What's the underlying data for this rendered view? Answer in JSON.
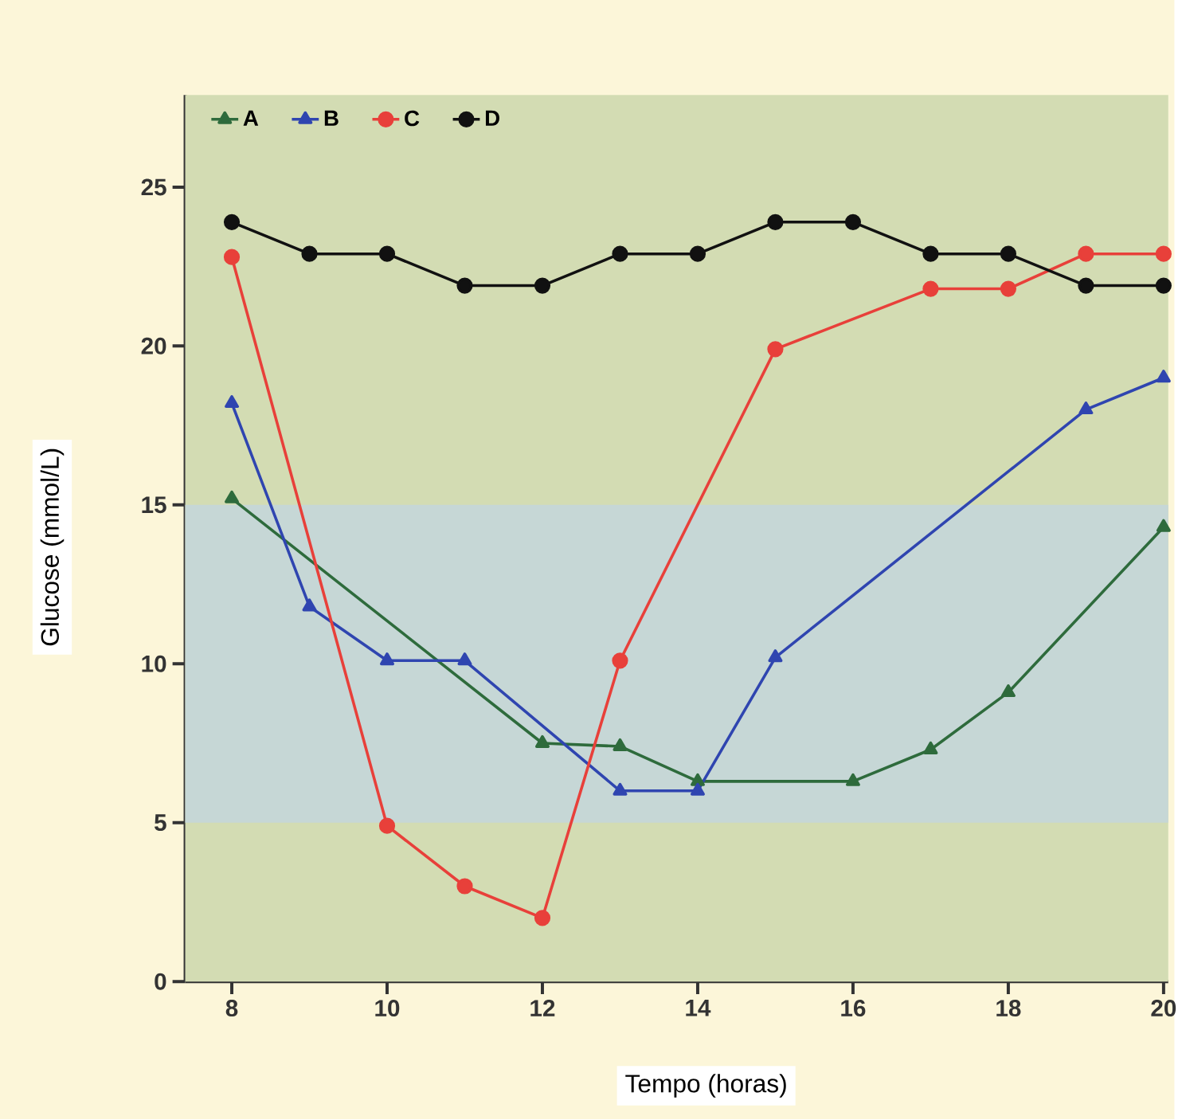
{
  "chart_data": {
    "type": "line",
    "xlabel": "Tempo (horas)",
    "ylabel": "Glucose (mmol/L)",
    "xlim": [
      7.4,
      20.06
    ],
    "ylim": [
      0,
      27.9
    ],
    "xticks": [
      8,
      10,
      12,
      14,
      16,
      18,
      20
    ],
    "yticks": [
      0,
      5,
      10,
      15,
      20,
      25
    ],
    "grid": false,
    "legend": "top left",
    "line_style": "solid",
    "bands": [
      {
        "axis": "y",
        "from": 5,
        "to": 15,
        "color": "#c6d7d6"
      }
    ],
    "series": [
      {
        "name": "A",
        "color": "#2e6b3c",
        "marker": "triangle",
        "x": [
          8,
          12,
          13,
          14,
          16,
          17,
          18,
          20
        ],
        "values": [
          15.2,
          7.5,
          7.4,
          6.3,
          6.3,
          7.3,
          9.1,
          14.3
        ]
      },
      {
        "name": "B",
        "color": "#2f45b0",
        "marker": "triangle",
        "x": [
          8,
          9,
          10,
          11,
          13,
          14,
          15,
          19,
          20
        ],
        "values": [
          18.2,
          11.8,
          10.1,
          10.1,
          6.0,
          6.0,
          10.2,
          18.0,
          19.0
        ]
      },
      {
        "name": "C",
        "color": "#e8403a",
        "marker": "circle",
        "x": [
          8,
          10,
          11,
          12,
          13,
          15,
          17,
          18,
          19,
          20
        ],
        "values": [
          22.8,
          4.9,
          3.0,
          2.0,
          10.1,
          19.9,
          21.8,
          21.8,
          22.9,
          22.9
        ]
      },
      {
        "name": "D",
        "color": "#111111",
        "marker": "circle",
        "x": [
          8,
          9,
          10,
          11,
          12,
          13,
          14,
          15,
          16,
          17,
          18,
          19,
          20
        ],
        "values": [
          23.9,
          22.9,
          22.9,
          21.9,
          21.9,
          22.9,
          22.9,
          23.9,
          23.9,
          22.9,
          22.9,
          21.9,
          21.9
        ]
      }
    ]
  }
}
